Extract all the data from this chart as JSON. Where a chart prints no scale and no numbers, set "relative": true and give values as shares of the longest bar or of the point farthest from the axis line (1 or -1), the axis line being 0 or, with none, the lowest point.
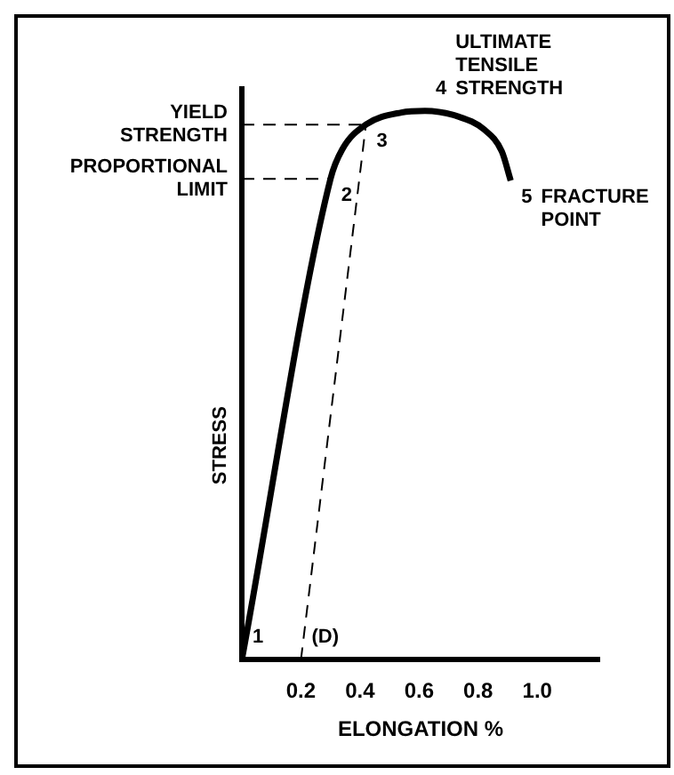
{
  "chart_data": {
    "type": "line",
    "relative": true,
    "xlabel": "ELONGATION %",
    "ylabel": "STRESS",
    "xlim": [
      0,
      1.21
    ],
    "xticks": [
      {
        "value": 0.2,
        "label": "0.2"
      },
      {
        "value": 0.4,
        "label": "0.4"
      },
      {
        "value": 0.6,
        "label": "0.6"
      },
      {
        "value": 0.8,
        "label": "0.8"
      },
      {
        "value": 1,
        "label": "1.0"
      }
    ],
    "tick_labels": "x",
    "grid": false,
    "legend": false,
    "marker": "none",
    "series": [
      {
        "color": "#000000",
        "line_style": "solid",
        "x": [
          0,
          0.3,
          0.34,
          0.42,
          0.54,
          0.62,
          0.73,
          0.82,
          0.88,
          0.91
        ],
        "values": [
          0,
          0.876,
          0.93,
          0.975,
          0.997,
          1,
          0.99,
          0.966,
          0.926,
          0.873
        ]
      },
      {
        "color": "#000000",
        "line_style": "dashed",
        "x": [
          0.2,
          0.42
        ],
        "values": [
          0,
          0.975
        ]
      },
      {
        "name": "YIELD STRENGTH",
        "color": "#000000",
        "line_style": "dashed",
        "x": [
          0,
          0.42
        ],
        "values": [
          0.975,
          0.975
        ]
      },
      {
        "name": "PROPORTIONAL LIMIT",
        "color": "#000000",
        "line_style": "dashed",
        "x": [
          0,
          0.3
        ],
        "values": [
          0.876,
          0.876
        ]
      }
    ],
    "annotations": [
      {
        "text": "1",
        "x": 0,
        "y": 0
      },
      {
        "text": "(D)",
        "x": 0.2,
        "y": 0
      },
      {
        "text": "2",
        "x": 0.3,
        "y": 0.876
      },
      {
        "text": "3",
        "x": 0.42,
        "y": 0.975
      },
      {
        "text": "4",
        "x": 0.62,
        "y": 1
      },
      {
        "text": "ULTIMATE TENSILE STRENGTH",
        "x": 0.62,
        "y": 1
      },
      {
        "text": "5",
        "x": 0.91,
        "y": 0.873
      },
      {
        "text": "FRACTURE POINT",
        "x": 0.91,
        "y": 0.873
      }
    ]
  }
}
